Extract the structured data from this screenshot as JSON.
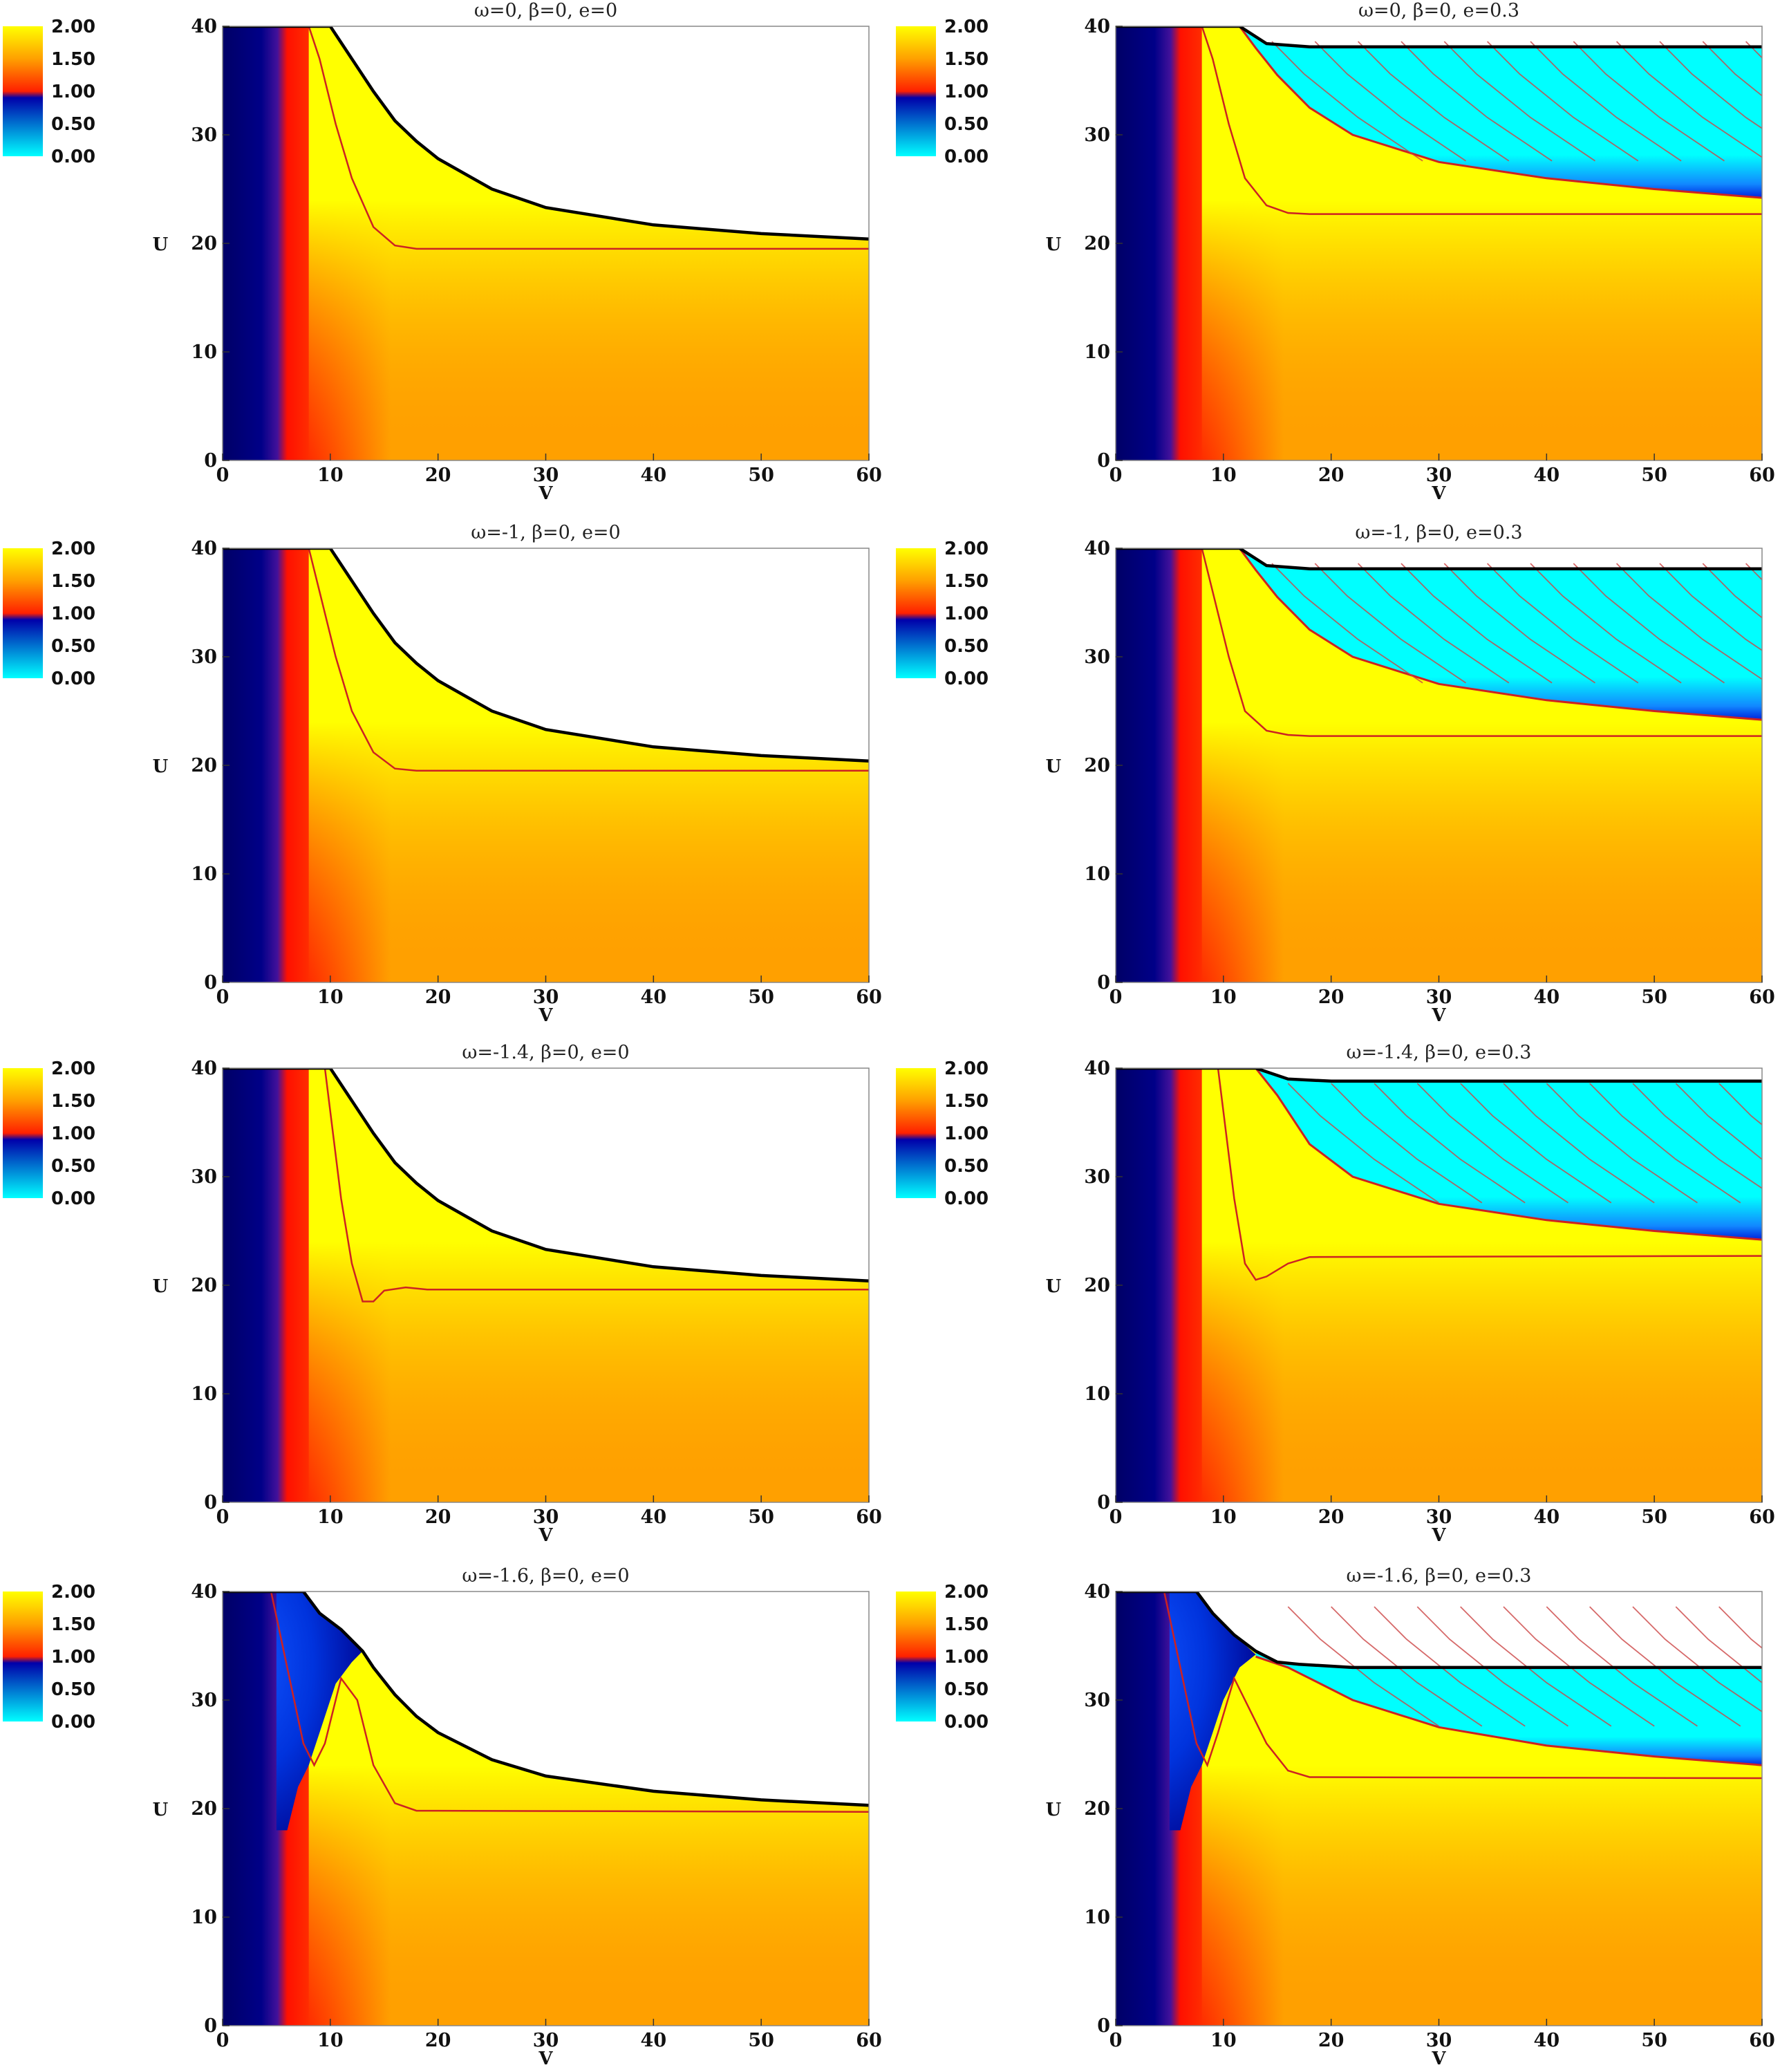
{
  "chart_data": {
    "type": "heatmap",
    "layout": "4 rows x 2 columns of contour panels",
    "shared": {
      "xlabel": "V",
      "ylabel": "U",
      "xlim": [
        0,
        60
      ],
      "ylim": [
        0,
        40
      ],
      "xticks": [
        "0",
        "10",
        "20",
        "30",
        "40",
        "50",
        "60"
      ],
      "yticks": [
        "0",
        "10",
        "20",
        "30",
        "40"
      ],
      "colorbar": {
        "ticks": [
          "2.00",
          "1.50",
          "1.00",
          "0.50",
          "0.00"
        ],
        "range": [
          0,
          2
        ],
        "colors": [
          "#00ffff",
          "#0000aa",
          "#ff0000",
          "#ffa000",
          "#ffff00"
        ]
      },
      "contour_color": "#cc2222",
      "horizon_color": "#000000",
      "grid": false
    },
    "panels": [
      {
        "title": "ω=0,   β=0,   e=0",
        "horizon": [
          [
            0,
            40
          ],
          [
            10,
            40
          ],
          [
            12,
            37
          ],
          [
            14,
            34
          ],
          [
            16,
            31.3
          ],
          [
            18,
            29.4
          ],
          [
            20,
            27.8
          ],
          [
            25,
            25
          ],
          [
            30,
            23.3
          ],
          [
            40,
            21.7
          ],
          [
            50,
            20.9
          ],
          [
            60,
            20.4
          ]
        ],
        "inner_horizon": null,
        "contour": [
          [
            8,
            40
          ],
          [
            9,
            37
          ],
          [
            10.5,
            31
          ],
          [
            12,
            26
          ],
          [
            14,
            21.5
          ],
          [
            16,
            19.8
          ],
          [
            18,
            19.5
          ],
          [
            60,
            19.5
          ]
        ],
        "blue_inner": null,
        "blue_outer": null
      },
      {
        "title": "ω=0,   β=0,   e=0.3",
        "horizon": [
          [
            0,
            40
          ],
          [
            11.5,
            40
          ],
          [
            14,
            38.4
          ],
          [
            18,
            38.1
          ],
          [
            60,
            38.1
          ]
        ],
        "inner_horizon": [
          [
            11.5,
            40
          ],
          [
            13,
            38
          ],
          [
            15,
            35.5
          ],
          [
            18,
            32.5
          ],
          [
            22,
            30
          ],
          [
            30,
            27.5
          ],
          [
            40,
            26
          ],
          [
            50,
            25
          ],
          [
            60,
            24.2
          ]
        ],
        "contour": [
          [
            8,
            40
          ],
          [
            9,
            37
          ],
          [
            10.5,
            31
          ],
          [
            12,
            26
          ],
          [
            14,
            23.5
          ],
          [
            16,
            22.8
          ],
          [
            18,
            22.7
          ],
          [
            60,
            22.7
          ]
        ],
        "blue_inner": null,
        "blue_outer": null
      },
      {
        "title": "ω=-1,   β=0,   e=0",
        "horizon": [
          [
            0,
            40
          ],
          [
            10,
            40
          ],
          [
            12,
            37
          ],
          [
            14,
            34
          ],
          [
            16,
            31.3
          ],
          [
            18,
            29.4
          ],
          [
            20,
            27.8
          ],
          [
            25,
            25
          ],
          [
            30,
            23.3
          ],
          [
            40,
            21.7
          ],
          [
            50,
            20.9
          ],
          [
            60,
            20.4
          ]
        ],
        "inner_horizon": null,
        "contour": [
          [
            8,
            40
          ],
          [
            9,
            36
          ],
          [
            10.5,
            30
          ],
          [
            12,
            25
          ],
          [
            14,
            21.2
          ],
          [
            16,
            19.7
          ],
          [
            18,
            19.5
          ],
          [
            60,
            19.5
          ]
        ],
        "blue_inner": null,
        "blue_outer": null
      },
      {
        "title": "ω=-1,   β=0,   e=0.3",
        "horizon": [
          [
            0,
            40
          ],
          [
            11.5,
            40
          ],
          [
            14,
            38.4
          ],
          [
            18,
            38.1
          ],
          [
            60,
            38.1
          ]
        ],
        "inner_horizon": [
          [
            11.5,
            40
          ],
          [
            13,
            38
          ],
          [
            15,
            35.5
          ],
          [
            18,
            32.5
          ],
          [
            22,
            30
          ],
          [
            30,
            27.5
          ],
          [
            40,
            26
          ],
          [
            50,
            25
          ],
          [
            60,
            24.2
          ]
        ],
        "contour": [
          [
            8,
            40
          ],
          [
            9,
            36
          ],
          [
            10.5,
            30
          ],
          [
            12,
            25
          ],
          [
            14,
            23.2
          ],
          [
            16,
            22.8
          ],
          [
            18,
            22.7
          ],
          [
            60,
            22.7
          ]
        ],
        "blue_inner": null,
        "blue_outer": null
      },
      {
        "title": "ω=-1.4,   β=0,   e=0",
        "horizon": [
          [
            0,
            40
          ],
          [
            10,
            40
          ],
          [
            12,
            37
          ],
          [
            14,
            34
          ],
          [
            16,
            31.3
          ],
          [
            18,
            29.4
          ],
          [
            20,
            27.8
          ],
          [
            25,
            25
          ],
          [
            30,
            23.3
          ],
          [
            40,
            21.7
          ],
          [
            50,
            20.9
          ],
          [
            60,
            20.4
          ]
        ],
        "inner_horizon": null,
        "contour": [
          [
            9.5,
            40
          ],
          [
            10,
            36
          ],
          [
            11,
            28
          ],
          [
            12,
            22
          ],
          [
            13,
            18.5
          ],
          [
            14,
            18.5
          ],
          [
            15,
            19.5
          ],
          [
            17,
            19.8
          ],
          [
            19,
            19.6
          ],
          [
            60,
            19.6
          ]
        ],
        "blue_inner": null,
        "blue_outer": null
      },
      {
        "title": "ω=-1.4,   β=0,   e=0.3",
        "horizon": [
          [
            0,
            40
          ],
          [
            13,
            40
          ],
          [
            16,
            39
          ],
          [
            20,
            38.8
          ],
          [
            60,
            38.8
          ]
        ],
        "inner_horizon": [
          [
            13,
            40
          ],
          [
            15,
            37.5
          ],
          [
            18,
            33
          ],
          [
            22,
            30
          ],
          [
            30,
            27.5
          ],
          [
            40,
            26
          ],
          [
            50,
            25
          ],
          [
            60,
            24.2
          ]
        ],
        "contour": [
          [
            9.5,
            40
          ],
          [
            10,
            36
          ],
          [
            11,
            28
          ],
          [
            12,
            22
          ],
          [
            13,
            20.5
          ],
          [
            14,
            20.8
          ],
          [
            16,
            22
          ],
          [
            18,
            22.6
          ],
          [
            60,
            22.7
          ]
        ],
        "blue_inner": null,
        "blue_outer": null
      },
      {
        "title": "ω=-1.6,   β=0,   e=0",
        "horizon": [
          [
            0,
            40
          ],
          [
            7.5,
            40
          ],
          [
            9,
            38
          ],
          [
            11,
            36.5
          ],
          [
            13,
            34.5
          ],
          [
            14,
            33
          ],
          [
            16,
            30.5
          ],
          [
            18,
            28.5
          ],
          [
            20,
            27
          ],
          [
            25,
            24.5
          ],
          [
            30,
            23
          ],
          [
            40,
            21.6
          ],
          [
            50,
            20.8
          ],
          [
            60,
            20.3
          ]
        ],
        "inner_horizon": null,
        "contour": [
          [
            4.5,
            40
          ],
          [
            6,
            33
          ],
          [
            7.5,
            26
          ],
          [
            8.5,
            24
          ],
          [
            9.5,
            26
          ],
          [
            11,
            32
          ],
          [
            12.5,
            30
          ],
          [
            14,
            24
          ],
          [
            16,
            20.5
          ],
          [
            18,
            19.8
          ],
          [
            60,
            19.7
          ]
        ],
        "blue_inner": [
          [
            0,
            40
          ],
          [
            7.5,
            40
          ],
          [
            9,
            38
          ],
          [
            11,
            36.5
          ],
          [
            13,
            34.5
          ],
          [
            12,
            33.5
          ],
          [
            10.5,
            31.5
          ],
          [
            9,
            27
          ],
          [
            8,
            24
          ],
          [
            7,
            22
          ],
          [
            6,
            18
          ],
          [
            5,
            18
          ],
          [
            5,
            40
          ]
        ],
        "blue_outer": null
      },
      {
        "title": "ω=-1.6,   β=0,   e=0.3",
        "horizon": [
          [
            0,
            40
          ],
          [
            7.5,
            40
          ],
          [
            9,
            38
          ],
          [
            11,
            36
          ],
          [
            13,
            34.5
          ],
          [
            15,
            33.5
          ],
          [
            17,
            33.3
          ],
          [
            22,
            33
          ],
          [
            60,
            33
          ]
        ],
        "inner_horizon": [
          [
            13,
            34
          ],
          [
            16,
            33
          ],
          [
            19,
            31.5
          ],
          [
            22,
            30
          ],
          [
            30,
            27.5
          ],
          [
            40,
            25.8
          ],
          [
            50,
            24.8
          ],
          [
            60,
            24
          ]
        ],
        "contour": [
          [
            4.5,
            40
          ],
          [
            6,
            33
          ],
          [
            7.5,
            26
          ],
          [
            8.5,
            24
          ],
          [
            9.5,
            27
          ],
          [
            11,
            32
          ],
          [
            12.5,
            29
          ],
          [
            14,
            26
          ],
          [
            16,
            23.5
          ],
          [
            18,
            22.9
          ],
          [
            60,
            22.8
          ]
        ],
        "blue_inner": [
          [
            0,
            40
          ],
          [
            7.5,
            40
          ],
          [
            9,
            38
          ],
          [
            11,
            36
          ],
          [
            13,
            34.2
          ],
          [
            11.5,
            33
          ],
          [
            10,
            30
          ],
          [
            9,
            27
          ],
          [
            8,
            24
          ],
          [
            7,
            22
          ],
          [
            6,
            18
          ],
          [
            5,
            18
          ],
          [
            5,
            40
          ]
        ],
        "blue_outer": null
      }
    ]
  }
}
